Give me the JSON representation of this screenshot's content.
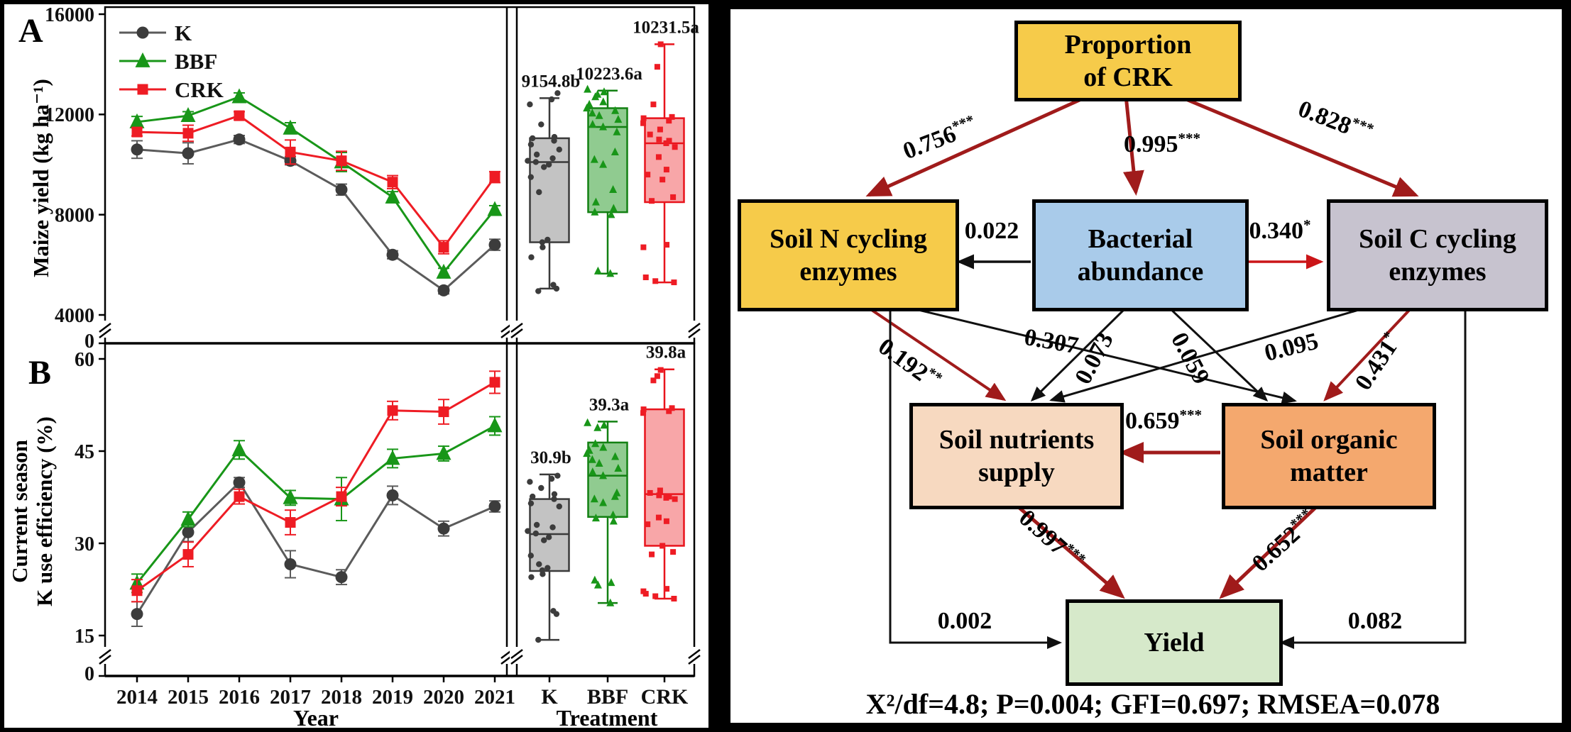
{
  "chart_data": [
    {
      "type": "line",
      "panel_label": "A",
      "y_label": "Maize yield (kg ha⁻¹)",
      "x_label": "",
      "box_x_label": "",
      "y_ticks": [
        "16000",
        "12000",
        "8000",
        "4000"
      ],
      "y_tick_values": [
        16000,
        12000,
        8000,
        4000
      ],
      "zero_label": "0",
      "y_min": 4000,
      "y_max": 16000,
      "years": [
        "2014",
        "2015",
        "2016",
        "2017",
        "2018",
        "2019",
        "2020",
        "2021"
      ],
      "series": [
        {
          "name": "K",
          "marker": "circle",
          "marker_color": "#3c3c3c",
          "line_color": "#5b5b5b",
          "box_fill": "#c3c3c3",
          "box_stroke": "#3a3a3a",
          "values": [
            10600,
            10450,
            11000,
            10150,
            9000,
            6400,
            4980,
            6800
          ],
          "err": [
            350,
            420,
            160,
            160,
            220,
            160,
            140,
            220
          ]
        },
        {
          "name": "BBF",
          "marker": "triangle",
          "marker_color": "#189618",
          "line_color": "#189618",
          "box_fill": "#90cb90",
          "box_stroke": "#128012",
          "values": [
            11700,
            11950,
            12700,
            11450,
            10100,
            8700,
            5700,
            8200
          ],
          "err": [
            220,
            160,
            160,
            220,
            380,
            220,
            160,
            160
          ]
        },
        {
          "name": "CRK",
          "marker": "square",
          "marker_color": "#ee1c24",
          "line_color": "#ee1c24",
          "box_fill": "#f8a6a8",
          "box_stroke": "#e8141c",
          "values": [
            11300,
            11250,
            11950,
            10500,
            10150,
            9300,
            6700,
            9500
          ],
          "err": [
            160,
            320,
            160,
            480,
            380,
            260,
            260,
            220
          ]
        }
      ],
      "box": {
        "categories": [
          "K",
          "BBF",
          "CRK"
        ],
        "stats": [
          {
            "lo": 5050,
            "q1": 6900,
            "med": 10100,
            "q3": 11050,
            "hi": 12650,
            "label": "9154.8b"
          },
          {
            "lo": 5650,
            "q1": 8100,
            "med": 11500,
            "q3": 12250,
            "hi": 12950,
            "label": "10223.6a"
          },
          {
            "lo": 5300,
            "q1": 8500,
            "med": 10850,
            "q3": 11850,
            "hi": 14800,
            "label": "10231.5a"
          }
        ],
        "scatter": [
          [
            12850,
            12600,
            12400,
            11600,
            11100,
            11050,
            10950,
            10800,
            10600,
            10400,
            10250,
            10150,
            10100,
            10000,
            9900,
            9500,
            8900,
            7000,
            6900,
            6700,
            6300,
            5200,
            5050,
            4950
          ],
          [
            13000,
            12900,
            12800,
            12700,
            12500,
            12400,
            12250,
            12150,
            12050,
            11950,
            11800,
            11600,
            11500,
            11300,
            10500,
            10200,
            10000,
            9000,
            8500,
            8250,
            8100,
            8000,
            5750,
            5650
          ],
          [
            14800,
            13900,
            12400,
            11900,
            11850,
            11750,
            11650,
            11400,
            11200,
            11000,
            10950,
            10850,
            10700,
            10300,
            9800,
            9600,
            9400,
            8700,
            8550,
            6800,
            6700,
            5500,
            5350,
            5300
          ]
        ]
      }
    },
    {
      "type": "line",
      "panel_label": "B",
      "y_label": "Current season\nK use efficiency (%)",
      "x_label": "Year",
      "box_x_label": "Treatment",
      "y_ticks": [
        "60",
        "45",
        "30",
        "15"
      ],
      "y_tick_values": [
        60,
        45,
        30,
        15
      ],
      "zero_label": "0",
      "y_min": 15,
      "y_max": 60,
      "years": [
        "2014",
        "2015",
        "2016",
        "2017",
        "2018",
        "2019",
        "2020",
        "2021"
      ],
      "series": [
        {
          "name": "K",
          "marker": "circle",
          "marker_color": "#3c3c3c",
          "line_color": "#5b5b5b",
          "box_fill": "#c3c3c3",
          "box_stroke": "#3a3a3a",
          "values": [
            18.5,
            31.8,
            39.9,
            26.6,
            24.5,
            37.8,
            32.4,
            36.0
          ],
          "err": [
            2.0,
            1.5,
            0.8,
            2.2,
            1.2,
            1.5,
            1.2,
            0.9
          ]
        },
        {
          "name": "BBF",
          "marker": "triangle",
          "marker_color": "#189618",
          "line_color": "#189618",
          "box_fill": "#90cb90",
          "box_stroke": "#128012",
          "values": [
            23.5,
            33.9,
            45.2,
            37.4,
            37.2,
            43.8,
            44.6,
            49.1
          ],
          "err": [
            1.5,
            1.2,
            1.5,
            1.2,
            3.5,
            1.5,
            1.2,
            1.5
          ]
        },
        {
          "name": "CRK",
          "marker": "square",
          "marker_color": "#ee1c24",
          "line_color": "#ee1c24",
          "box_fill": "#f8a6a8",
          "box_stroke": "#e8141c",
          "values": [
            22.3,
            28.2,
            37.6,
            33.4,
            37.6,
            51.6,
            51.4,
            56.2
          ],
          "err": [
            1.8,
            2.0,
            1.2,
            2.0,
            1.5,
            1.5,
            2.0,
            1.8
          ]
        }
      ],
      "box": {
        "categories": [
          "K",
          "BBF",
          "CRK"
        ],
        "stats": [
          {
            "lo": 14.3,
            "q1": 25.5,
            "med": 31.5,
            "q3": 37.2,
            "hi": 41.2,
            "label": "30.9b"
          },
          {
            "lo": 20.3,
            "q1": 34.3,
            "med": 41.0,
            "q3": 46.4,
            "hi": 49.8,
            "label": "39.3a"
          },
          {
            "lo": 21.0,
            "q1": 29.6,
            "med": 38.0,
            "q3": 51.8,
            "hi": 58.3,
            "label": "39.8a"
          }
        ],
        "scatter": [
          [
            41,
            40.5,
            40,
            39,
            38,
            37.6,
            37.2,
            36.5,
            36,
            33,
            32.6,
            32,
            31.6,
            31,
            30.5,
            28,
            26.6,
            26,
            25.6,
            25,
            24.5,
            19,
            18.5,
            14.3
          ],
          [
            49.6,
            49.2,
            48.8,
            46.2,
            45.6,
            45.1,
            44.6,
            44.1,
            43.6,
            43,
            42.2,
            41.6,
            41,
            38.2,
            37.6,
            37.2,
            36.6,
            34.6,
            34.1,
            33.6,
            24,
            23.6,
            23.2,
            20.3
          ],
          [
            58.2,
            57.2,
            56.5,
            52,
            51.8,
            51.5,
            51.2,
            38.6,
            38.2,
            37.8,
            37.6,
            37.4,
            37.2,
            34.2,
            33.6,
            33.1,
            29.6,
            28.6,
            28.2,
            22.6,
            22.2,
            21.8,
            21.4,
            21
          ]
        ]
      }
    }
  ],
  "sem": {
    "colors": {
      "dark_red": "#a01b1b",
      "bright_red": "#cb1518",
      "black": "#101010",
      "gold": "#f6cb4a",
      "blue": "#a9cbea",
      "lavender": "#c7c3cf",
      "peach": "#f7d9c0",
      "orange": "#f4a86e",
      "green": "#d6e9ca"
    },
    "boxes": [
      {
        "key": "proportion-of-crk",
        "label": "Proportion\nof CRK",
        "fill": "#f6cb4a"
      },
      {
        "key": "soil-n-cycling-enzymes",
        "label": "Soil N cycling\nenzymes",
        "fill": "#f6cb4a"
      },
      {
        "key": "bacterial-abundance",
        "label": "Bacterial\nabundance",
        "fill": "#a9cbea"
      },
      {
        "key": "soil-c-cycling-enzymes",
        "label": "Soil C cycling\nenzymes",
        "fill": "#c7c3cf"
      },
      {
        "key": "soil-nutrients-supply",
        "label": "Soil nutrients\nsupply",
        "fill": "#f7d9c0"
      },
      {
        "key": "soil-organic-matter",
        "label": "Soil organic\nmatter",
        "fill": "#f4a86e"
      },
      {
        "key": "yield",
        "label": "Yield",
        "fill": "#d6e9ca"
      }
    ],
    "paths": [
      {
        "from": "proportion-of-crk",
        "to": "soil-n-cycling-enzymes",
        "value": "0.756",
        "sig": "***"
      },
      {
        "from": "proportion-of-crk",
        "to": "bacterial-abundance",
        "value": "0.995",
        "sig": "***"
      },
      {
        "from": "proportion-of-crk",
        "to": "soil-c-cycling-enzymes",
        "value": "0.828",
        "sig": "***"
      },
      {
        "from": "bacterial-abundance",
        "to": "soil-n-cycling-enzymes",
        "value": "0.022",
        "sig": ""
      },
      {
        "from": "bacterial-abundance",
        "to": "soil-c-cycling-enzymes",
        "value": "0.340",
        "sig": "*"
      },
      {
        "from": "soil-n-cycling-enzymes",
        "to": "soil-organic-matter",
        "value": "0.307",
        "sig": ""
      },
      {
        "from": "bacterial-abundance",
        "to": "soil-nutrients-supply",
        "value": "0.073",
        "sig": ""
      },
      {
        "from": "bacterial-abundance",
        "to": "soil-organic-matter",
        "value": "0.059",
        "sig": ""
      },
      {
        "from": "soil-c-cycling-enzymes",
        "to": "soil-nutrients-supply",
        "value": "0.095",
        "sig": ""
      },
      {
        "from": "soil-n-cycling-enzymes",
        "to": "soil-nutrients-supply",
        "value": "0.192",
        "sig": "**"
      },
      {
        "from": "soil-c-cycling-enzymes",
        "to": "soil-organic-matter",
        "value": "0.431",
        "sig": "*"
      },
      {
        "from": "soil-organic-matter",
        "to": "soil-nutrients-supply",
        "value": "0.659",
        "sig": "***"
      },
      {
        "from": "soil-nutrients-supply",
        "to": "yield",
        "value": "0.997",
        "sig": "***"
      },
      {
        "from": "soil-organic-matter",
        "to": "yield",
        "value": "0.652",
        "sig": "***"
      },
      {
        "from": "soil-n-cycling-enzymes",
        "to": "yield",
        "value": "0.002",
        "sig": ""
      },
      {
        "from": "soil-c-cycling-enzymes",
        "to": "yield",
        "value": "0.082",
        "sig": ""
      }
    ],
    "fit": "X²/df=4.8; P=0.004; GFI=0.697; RMSEA=0.078"
  }
}
